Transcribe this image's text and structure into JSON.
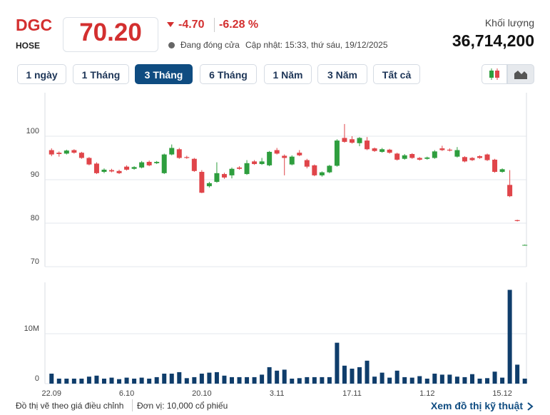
{
  "header": {
    "symbol": "DGC",
    "exchange": "HOSE",
    "price": "70.20",
    "change": "-4.70",
    "change_pct": "-6.28 %",
    "status": "Đang đóng cửa",
    "updated": "Cập nhật: 15:33, thứ sáu, 19/12/2025",
    "volume_label": "Khối lượng",
    "volume": "36,714,200"
  },
  "ranges": [
    "1 ngày",
    "1 Tháng",
    "3 Tháng",
    "6 Tháng",
    "1 Năm",
    "3 Năm",
    "Tất cả"
  ],
  "active_range": "3 Tháng",
  "footer": {
    "note": "Đồ thị vẽ theo giá điều chỉnh",
    "unit": "Đơn vị: 10,000 cổ phiếu",
    "link": "Xem đồ thị kỹ thuật"
  },
  "chart_data": [
    {
      "type": "candlestick",
      "categories": [
        "22.09",
        null,
        null,
        null,
        null,
        null,
        null,
        null,
        null,
        null,
        "6.10",
        null,
        null,
        null,
        null,
        null,
        null,
        null,
        null,
        null,
        "20.10",
        null,
        null,
        null,
        null,
        null,
        null,
        null,
        null,
        null,
        "3.11",
        null,
        null,
        null,
        null,
        null,
        null,
        null,
        null,
        null,
        "17.11",
        null,
        null,
        null,
        null,
        null,
        null,
        null,
        null,
        null,
        "1.12",
        null,
        null,
        null,
        null,
        null,
        null,
        null,
        null,
        null,
        "15.12",
        null,
        null,
        null
      ],
      "open": [
        96.8,
        96.2,
        96.0,
        96.8,
        96.2,
        95.0,
        93.7,
        91.8,
        92.2,
        92.0,
        93.0,
        92.5,
        92.8,
        94.1,
        93.8,
        91.5,
        95.8,
        97.0,
        95.2,
        94.8,
        91.8,
        88.5,
        89.5,
        91.3,
        91.0,
        92.8,
        91.3,
        94.2,
        93.6,
        93.3,
        96.8,
        95.5,
        93.5,
        96.2,
        94.5,
        93.3,
        91.0,
        91.7,
        93.2,
        99.6,
        99.3,
        98.4,
        99.0,
        97.2,
        96.4,
        96.9,
        96.0,
        94.8,
        95.9,
        95.0,
        94.8,
        95.0,
        97.2,
        96.9,
        95.3,
        95.2,
        95.0,
        95.4,
        95.8,
        94.6,
        91.8,
        88.8,
        80.7,
        75.0
      ],
      "high": [
        97.2,
        96.5,
        96.9,
        97.0,
        96.4,
        95.2,
        94.0,
        92.6,
        92.5,
        92.3,
        93.3,
        93.1,
        94.3,
        94.4,
        94.3,
        96.0,
        98.1,
        97.3,
        95.5,
        95.0,
        92.2,
        89.5,
        94.0,
        91.6,
        92.8,
        93.1,
        94.5,
        94.5,
        95.0,
        96.6,
        97.3,
        95.8,
        95.6,
        96.8,
        94.8,
        93.5,
        91.9,
        93.4,
        99.3,
        102.8,
        100.0,
        99.8,
        99.8,
        97.4,
        97.3,
        97.1,
        96.2,
        95.9,
        96.1,
        95.2,
        95.3,
        96.8,
        97.8,
        97.2,
        97.5,
        95.4,
        95.2,
        95.6,
        96.0,
        94.8,
        92.6,
        92.2,
        80.8,
        75.1
      ],
      "low": [
        95.4,
        95.3,
        95.8,
        96.0,
        94.8,
        93.3,
        91.3,
        91.5,
        91.7,
        91.3,
        92.1,
        92.3,
        92.6,
        93.1,
        93.6,
        91.3,
        95.6,
        94.8,
        94.8,
        91.8,
        86.9,
        88.2,
        89.3,
        90.2,
        90.3,
        92.3,
        91.1,
        93.4,
        93.4,
        93.1,
        95.8,
        91.0,
        93.3,
        95.4,
        92.6,
        90.8,
        90.7,
        91.5,
        93.0,
        98.5,
        98.3,
        97.7,
        96.8,
        96.4,
        96.2,
        96.0,
        94.4,
        94.6,
        94.8,
        94.4,
        94.6,
        94.8,
        96.6,
        96.5,
        95.1,
        94.0,
        94.3,
        94.8,
        94.3,
        91.6,
        91.6,
        86.0,
        80.4,
        74.9
      ],
      "close": [
        95.8,
        95.9,
        96.7,
        96.2,
        95.0,
        93.5,
        91.5,
        92.3,
        91.9,
        91.5,
        92.3,
        92.9,
        94.0,
        93.3,
        94.1,
        95.8,
        97.3,
        95.0,
        95.0,
        92.0,
        87.0,
        89.2,
        91.5,
        90.5,
        92.5,
        92.5,
        93.8,
        93.6,
        94.2,
        96.4,
        96.0,
        95.0,
        95.3,
        95.6,
        93.0,
        91.0,
        91.7,
        93.2,
        99.0,
        98.7,
        98.5,
        99.6,
        97.0,
        96.6,
        97.0,
        96.2,
        94.6,
        95.6,
        95.0,
        94.6,
        95.1,
        96.5,
        96.8,
        96.7,
        96.8,
        94.2,
        94.5,
        95.0,
        94.5,
        91.8,
        92.4,
        86.2,
        80.5,
        75.0
      ],
      "up_color": "#2e9e3e",
      "down_color": "#e0454a",
      "ylim": [
        70,
        110
      ],
      "yticks": [
        70,
        80,
        90,
        100
      ],
      "grid": true
    },
    {
      "type": "bar",
      "values": [
        2000000,
        1000000,
        1000000,
        1000000,
        1000000,
        1400000,
        1600000,
        1000000,
        1200000,
        900000,
        1200000,
        1000000,
        1200000,
        1000000,
        1300000,
        2000000,
        2000000,
        2300000,
        1100000,
        1300000,
        2000000,
        2200000,
        2300000,
        1600000,
        1300000,
        1300000,
        1300000,
        1300000,
        1800000,
        3300000,
        2600000,
        2800000,
        1000000,
        1100000,
        1300000,
        1300000,
        1300000,
        1300000,
        8200000,
        3600000,
        3000000,
        3300000,
        4600000,
        1400000,
        2200000,
        1200000,
        2600000,
        1300000,
        1200000,
        1500000,
        1000000,
        2000000,
        1800000,
        1800000,
        1400000,
        1300000,
        1900000,
        1000000,
        1100000,
        2400000,
        1200000,
        18800000,
        3800000,
        1000000
      ],
      "color": "#0f3d6b",
      "ylim": [
        0,
        20300000
      ],
      "yticks": [
        0,
        {
          "value": 10000000,
          "label": "10M"
        }
      ],
      "grid": true
    }
  ]
}
